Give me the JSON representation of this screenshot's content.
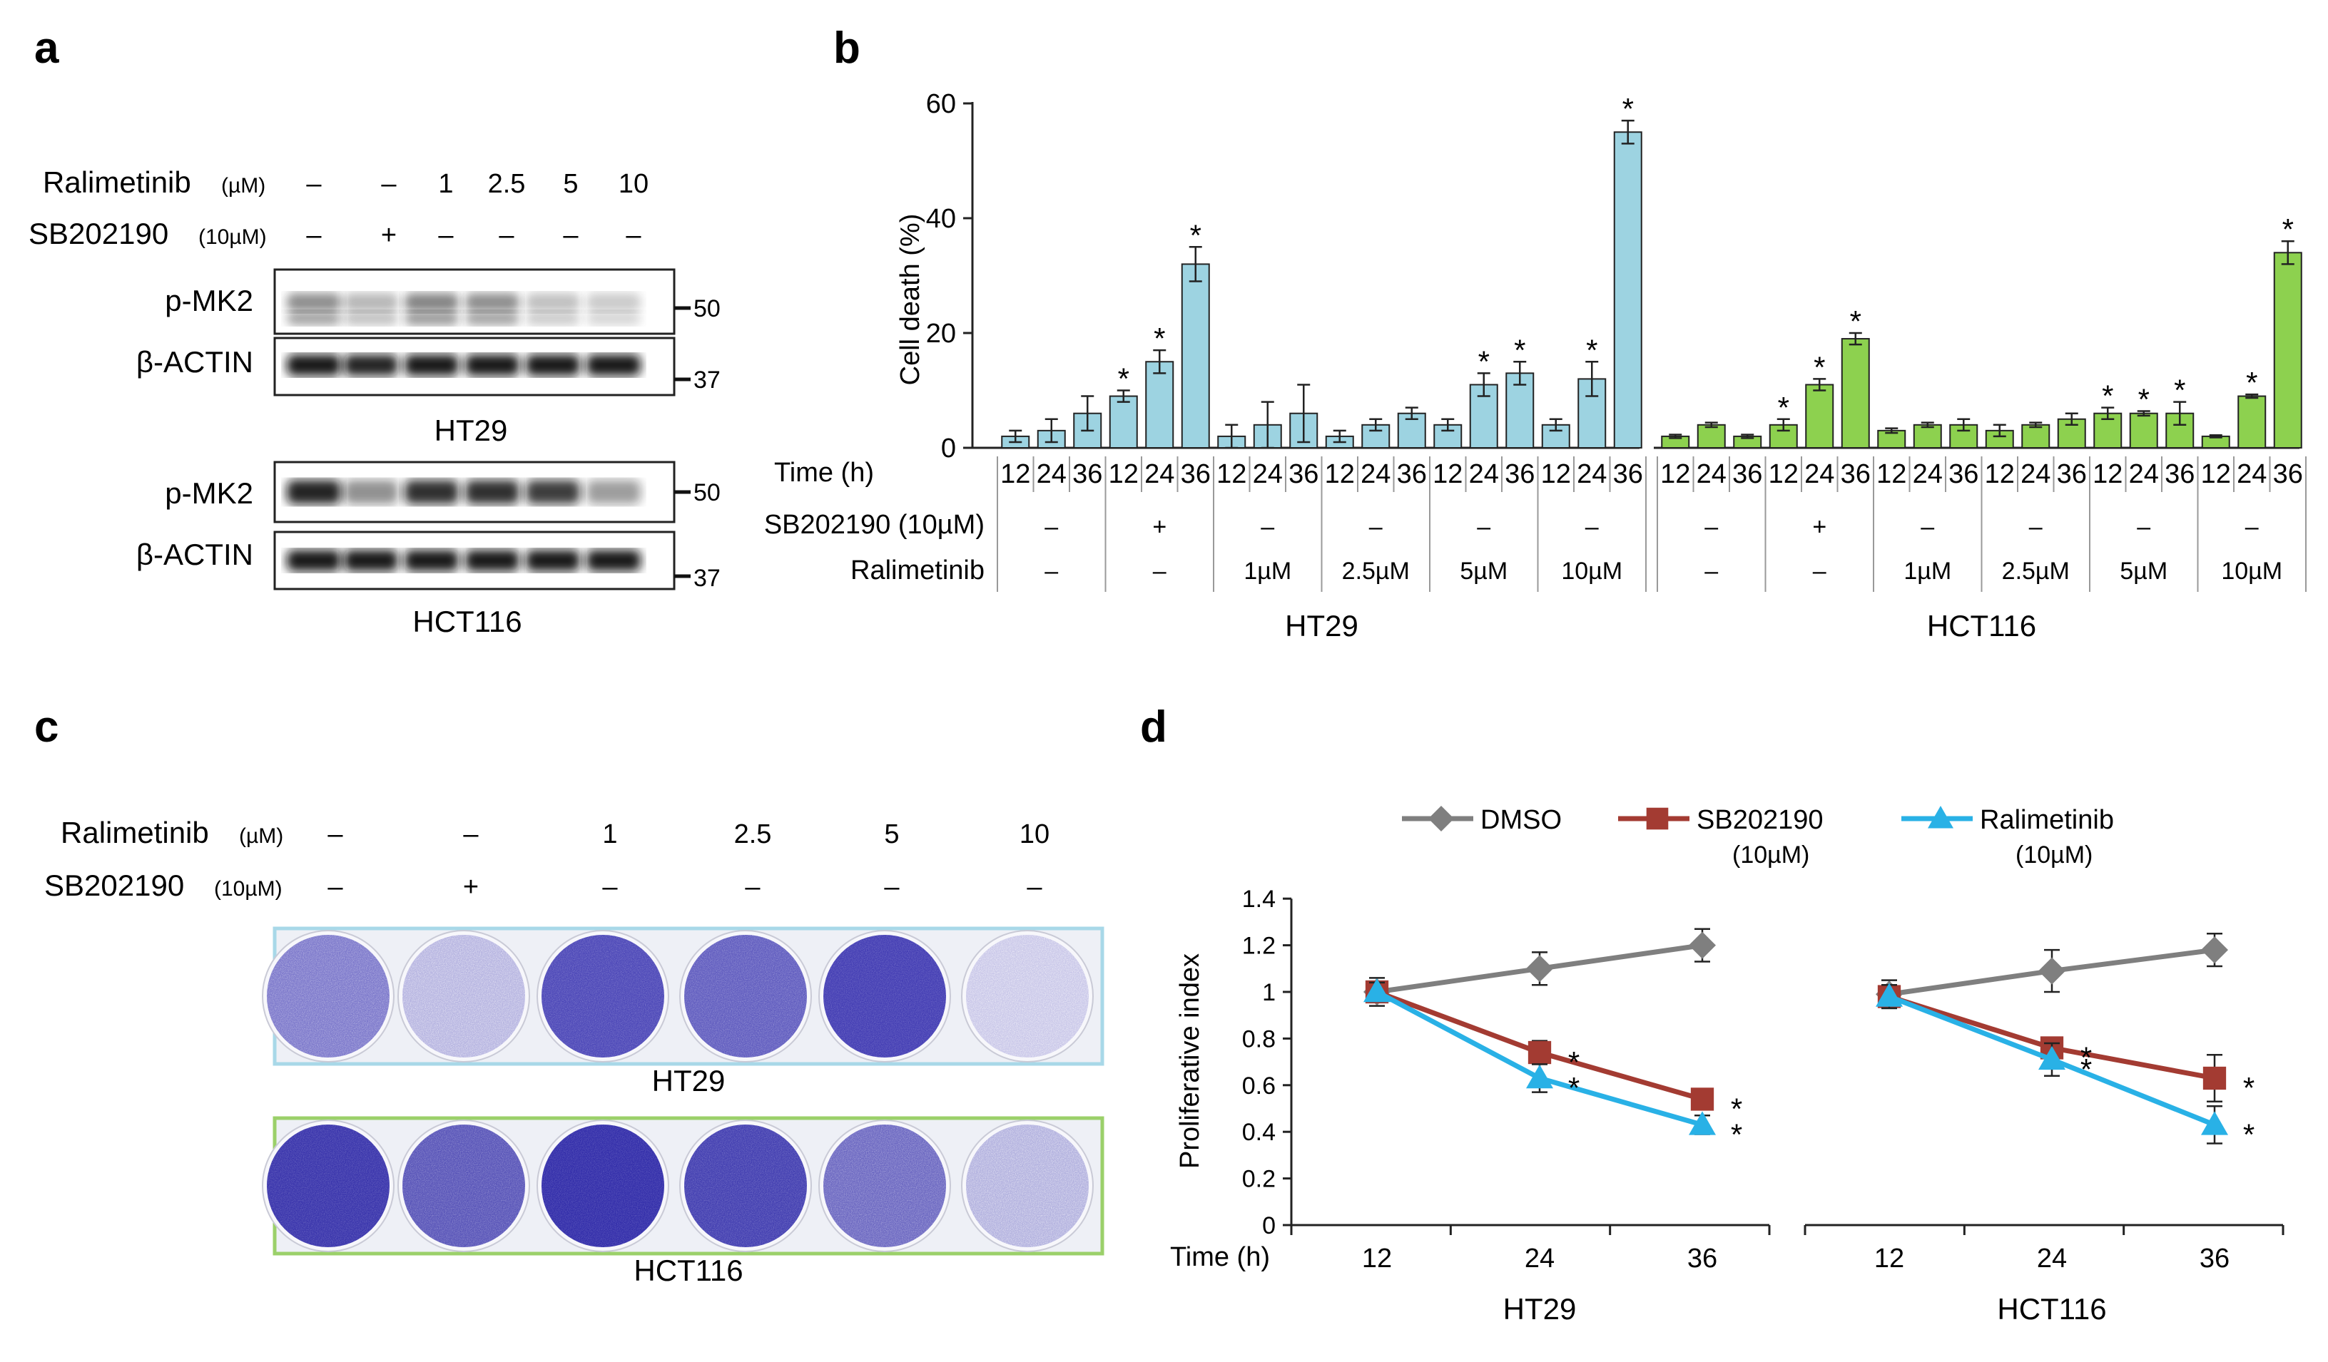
{
  "panels": {
    "a": {
      "label": "a",
      "treatments": {
        "ralimetinib_label": "Ralimetinib",
        "ralimetinib_unit": "(µM)",
        "ralimetinib_values": [
          "–",
          "–",
          "1",
          "2.5",
          "5",
          "10"
        ],
        "sb_label": "SB202190",
        "sb_unit": "(10µM)",
        "sb_values": [
          "–",
          "+",
          "–",
          "–",
          "–",
          "–"
        ]
      },
      "blots": [
        {
          "cell_line": "HT29",
          "rows": [
            {
              "protein": "p-MK2",
              "marker": "50"
            },
            {
              "protein": "β-ACTIN",
              "marker": "37"
            }
          ]
        },
        {
          "cell_line": "HCT116",
          "rows": [
            {
              "protein": "p-MK2",
              "marker": "50"
            },
            {
              "protein": "β-ACTIN",
              "marker": "37"
            }
          ]
        }
      ]
    },
    "b": {
      "label": "b",
      "row_labels": {
        "time": "Time (h)",
        "sb": "SB202190 (10µM)",
        "ralimetinib": "Ralimetinib"
      }
    },
    "c": {
      "label": "c",
      "treatments": {
        "ralimetinib_label": "Ralimetinib",
        "ralimetinib_unit": "(µM)",
        "ralimetinib_values": [
          "–",
          "–",
          "1",
          "2.5",
          "5",
          "10"
        ],
        "sb_label": "SB202190",
        "sb_unit": "(10µM)",
        "sb_values": [
          "–",
          "+",
          "–",
          "–",
          "–",
          "–"
        ]
      },
      "plates": [
        {
          "cell_line": "HT29",
          "frame_color": "#a8d8e8",
          "stain": "#3a34b0"
        },
        {
          "cell_line": "HCT116",
          "frame_color": "#9bd06a",
          "stain": "#2f2aa8"
        }
      ]
    },
    "d": {
      "label": "d",
      "time_label": "Time (h)"
    }
  },
  "colors": {
    "ht29_bar": "#9dd3e1",
    "hct116_bar": "#8dd14f",
    "dmso": "#7f7f7f",
    "sb202190": "#a33b32",
    "ralimetinib": "#29b1e6"
  },
  "chart_data": [
    {
      "id": "b",
      "type": "bar",
      "title": "",
      "ylabel": "Cell death (%)",
      "ylim": [
        0,
        60
      ],
      "yticks": [
        0,
        20,
        40,
        60
      ],
      "time_points": [
        "12",
        "24",
        "36"
      ],
      "groups": [
        {
          "cell_line": "HT29",
          "color_key": "ht29_bar",
          "conditions": [
            {
              "sb": "–",
              "ralimetinib": "–",
              "values": [
                2,
                3,
                6
              ],
              "errors": [
                1,
                2,
                3
              ],
              "significant": [
                false,
                false,
                false
              ]
            },
            {
              "sb": "+",
              "ralimetinib": "–",
              "values": [
                9,
                15,
                32
              ],
              "errors": [
                1,
                2,
                3
              ],
              "significant": [
                true,
                true,
                true
              ]
            },
            {
              "sb": "–",
              "ralimetinib": "1µM",
              "values": [
                2,
                4,
                6
              ],
              "errors": [
                2,
                4,
                5
              ],
              "significant": [
                false,
                false,
                false
              ]
            },
            {
              "sb": "–",
              "ralimetinib": "2.5µM",
              "values": [
                2,
                4,
                6
              ],
              "errors": [
                1,
                1,
                1
              ],
              "significant": [
                false,
                false,
                false
              ]
            },
            {
              "sb": "–",
              "ralimetinib": "5µM",
              "values": [
                4,
                11,
                13
              ],
              "errors": [
                1,
                2,
                2
              ],
              "significant": [
                false,
                true,
                true
              ]
            },
            {
              "sb": "–",
              "ralimetinib": "10µM",
              "values": [
                4,
                12,
                55
              ],
              "errors": [
                1,
                3,
                2
              ],
              "significant": [
                false,
                true,
                true
              ]
            }
          ]
        },
        {
          "cell_line": "HCT116",
          "color_key": "hct116_bar",
          "conditions": [
            {
              "sb": "–",
              "ralimetinib": "–",
              "values": [
                2,
                4,
                2
              ],
              "errors": [
                0.3,
                0.4,
                0.3
              ],
              "significant": [
                false,
                false,
                false
              ]
            },
            {
              "sb": "+",
              "ralimetinib": "–",
              "values": [
                4,
                11,
                19
              ],
              "errors": [
                1,
                1,
                1
              ],
              "significant": [
                true,
                true,
                true
              ]
            },
            {
              "sb": "–",
              "ralimetinib": "1µM",
              "values": [
                3,
                4,
                4
              ],
              "errors": [
                0.4,
                0.4,
                1
              ],
              "significant": [
                false,
                false,
                false
              ]
            },
            {
              "sb": "–",
              "ralimetinib": "2.5µM",
              "values": [
                3,
                4,
                5
              ],
              "errors": [
                1,
                0.4,
                1
              ],
              "significant": [
                false,
                false,
                false
              ]
            },
            {
              "sb": "–",
              "ralimetinib": "5µM",
              "values": [
                6,
                6,
                6
              ],
              "errors": [
                1,
                0.4,
                2
              ],
              "significant": [
                true,
                true,
                true
              ]
            },
            {
              "sb": "–",
              "ralimetinib": "10µM",
              "values": [
                2,
                9,
                34
              ],
              "errors": [
                0.2,
                0.3,
                2
              ],
              "significant": [
                false,
                true,
                true
              ]
            }
          ]
        }
      ]
    },
    {
      "id": "d",
      "type": "line",
      "title": "",
      "xlabel": "Time (h)",
      "ylabel": "Proliferative index",
      "ylim": [
        0,
        1.4
      ],
      "yticks": [
        "0",
        "0.2",
        "0.4",
        "0.6",
        "0.8",
        "1",
        "1.2",
        "1.4"
      ],
      "x": [
        "12",
        "24",
        "36"
      ],
      "legend": [
        {
          "name": "DMSO",
          "sub": ""
        },
        {
          "name": "SB202190",
          "sub": "(10µM)"
        },
        {
          "name": "Ralimetinib",
          "sub": "(10µM)"
        }
      ],
      "subplots": [
        {
          "cell_line": "HT29",
          "series": [
            {
              "name": "DMSO",
              "color_key": "dmso",
              "marker": "diamond",
              "values": [
                1.0,
                1.1,
                1.2
              ],
              "errors": [
                0.06,
                0.07,
                0.07
              ],
              "significant": [
                false,
                false,
                false
              ]
            },
            {
              "name": "SB202190",
              "color_key": "sb202190",
              "marker": "square",
              "values": [
                1.0,
                0.74,
                0.54
              ],
              "errors": [
                0.04,
                0.05,
                0.03
              ],
              "significant": [
                false,
                true,
                true
              ]
            },
            {
              "name": "Ralimetinib",
              "color_key": "ralimetinib",
              "marker": "triangle",
              "values": [
                1.0,
                0.63,
                0.43
              ],
              "errors": [
                0.04,
                0.06,
                0.04
              ],
              "significant": [
                false,
                true,
                true
              ]
            }
          ]
        },
        {
          "cell_line": "HCT116",
          "series": [
            {
              "name": "DMSO",
              "color_key": "dmso",
              "marker": "diamond",
              "values": [
                0.99,
                1.09,
                1.18
              ],
              "errors": [
                0.06,
                0.09,
                0.07
              ],
              "significant": [
                false,
                false,
                false
              ]
            },
            {
              "name": "SB202190",
              "color_key": "sb202190",
              "marker": "square",
              "values": [
                0.98,
                0.76,
                0.63
              ],
              "errors": [
                0.04,
                0.04,
                0.1
              ],
              "significant": [
                false,
                true,
                true
              ]
            },
            {
              "name": "Ralimetinib",
              "color_key": "ralimetinib",
              "marker": "triangle",
              "values": [
                0.98,
                0.71,
                0.43
              ],
              "errors": [
                0.05,
                0.07,
                0.08
              ],
              "significant": [
                false,
                true,
                true
              ]
            }
          ]
        }
      ]
    }
  ]
}
